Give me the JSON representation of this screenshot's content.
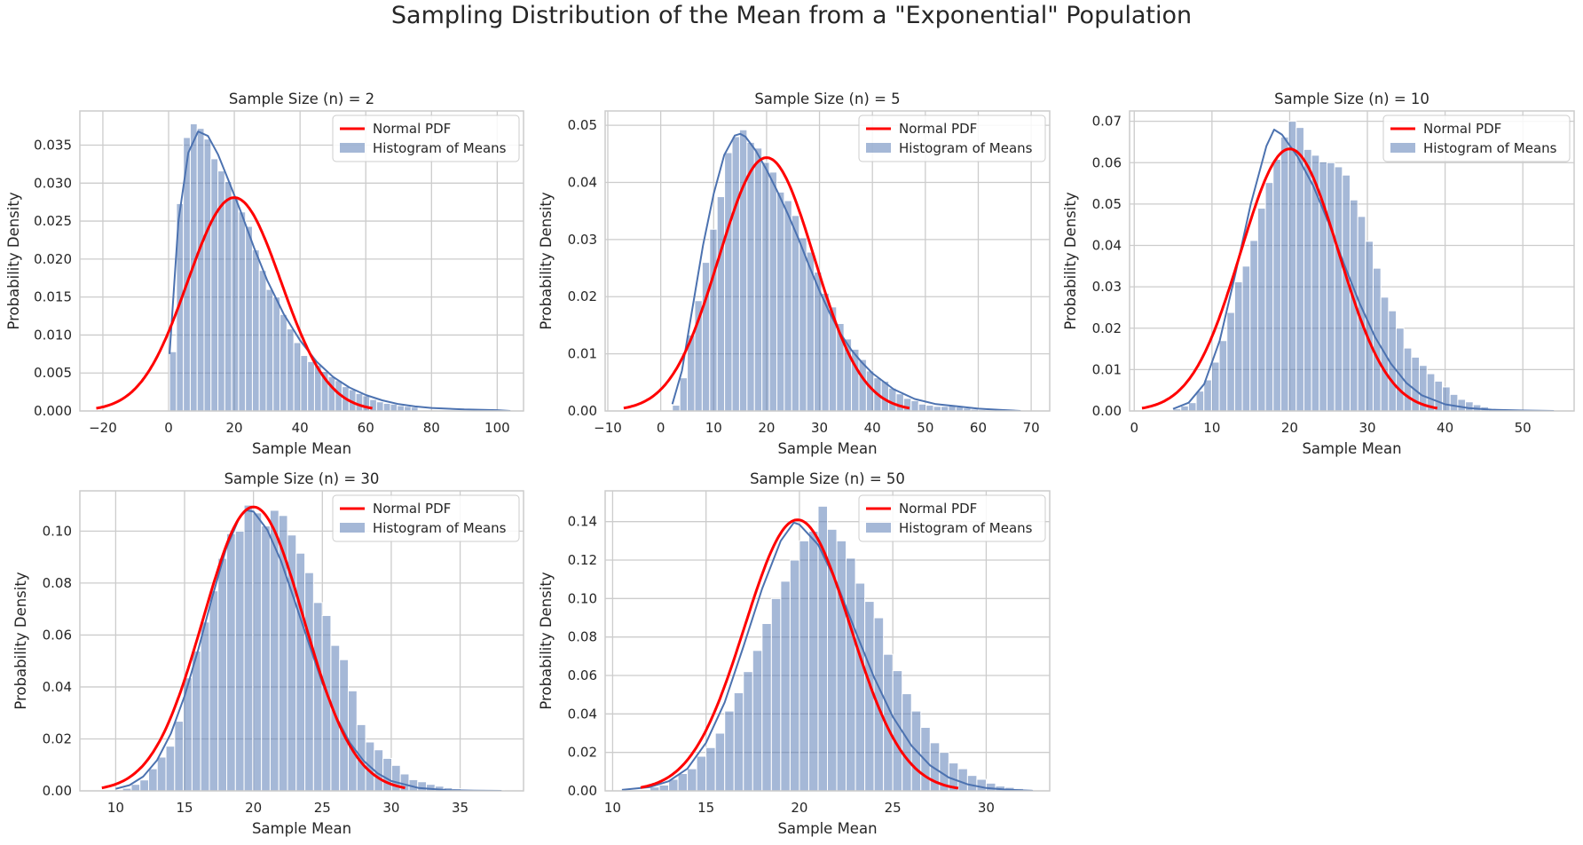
{
  "figure": {
    "title": "Sampling Distribution of the Mean from a \"Exponential\" Population"
  },
  "colors": {
    "normal_pdf": "#ff0000",
    "histogram": "#4c72b0",
    "grid": "#cccccc",
    "axes_bg": "#ffffff"
  },
  "chart_data": [
    {
      "type": "bar",
      "title": "Sample Size (n) = 2",
      "xlabel": "Sample Mean",
      "ylabel": "Probability Density",
      "legend": {
        "placement": "top-right",
        "entries": [
          "Normal PDF",
          "Histogram of Means"
        ]
      },
      "grid": true,
      "xlim": [
        -27,
        108
      ],
      "ylim": [
        0,
        0.0395
      ],
      "xticks": [
        -20,
        0,
        20,
        40,
        60,
        80,
        100
      ],
      "yticks": [
        0.0,
        0.005,
        0.01,
        0.015,
        0.02,
        0.025,
        0.03,
        0.035
      ],
      "ytick_decimals": 3,
      "hist": {
        "start": 0.3,
        "width": 2.1,
        "values": [
          0.0078,
          0.0273,
          0.036,
          0.0378,
          0.0372,
          0.0358,
          0.0332,
          0.0316,
          0.0302,
          0.0282,
          0.0262,
          0.0243,
          0.0212,
          0.0185,
          0.016,
          0.015,
          0.0127,
          0.0108,
          0.009,
          0.0073,
          0.0065,
          0.006,
          0.0052,
          0.0045,
          0.004,
          0.0032,
          0.0028,
          0.0023,
          0.002,
          0.0015,
          0.0012,
          0.001,
          0.0009,
          0.0007,
          0.0006,
          0.0005
        ]
      },
      "kde": {
        "x": [
          0.3,
          3,
          6,
          9,
          12,
          15,
          18,
          22,
          26,
          30,
          35,
          40,
          45,
          50,
          55,
          60,
          65,
          70,
          75,
          80,
          90,
          100,
          104
        ],
        "y": [
          0.0075,
          0.025,
          0.034,
          0.0368,
          0.0362,
          0.0338,
          0.0306,
          0.0262,
          0.0215,
          0.0172,
          0.0128,
          0.0093,
          0.0065,
          0.0045,
          0.0031,
          0.0021,
          0.0014,
          0.0009,
          0.0006,
          0.0004,
          0.0002,
          0.0001,
          0.0
        ]
      },
      "normal": {
        "mean": 20,
        "sd": 14.2,
        "x_range": [
          -22,
          62
        ]
      }
    },
    {
      "type": "bar",
      "title": "Sample Size (n) = 5",
      "xlabel": "Sample Mean",
      "ylabel": "Probability Density",
      "legend": {
        "placement": "top-right",
        "entries": [
          "Normal PDF",
          "Histogram of Means"
        ]
      },
      "grid": true,
      "xlim": [
        -10.5,
        73.5
      ],
      "ylim": [
        0,
        0.0525
      ],
      "xticks": [
        -10,
        0,
        10,
        20,
        30,
        40,
        50,
        60,
        70
      ],
      "yticks": [
        0.0,
        0.01,
        0.02,
        0.03,
        0.04,
        0.05
      ],
      "ytick_decimals": 2,
      "hist": {
        "start": 2.2,
        "width": 1.41,
        "values": [
          0.001,
          0.0058,
          0.0133,
          0.0193,
          0.026,
          0.0318,
          0.0375,
          0.0452,
          0.048,
          0.0492,
          0.047,
          0.046,
          0.0435,
          0.0418,
          0.0383,
          0.0368,
          0.0342,
          0.0303,
          0.0278,
          0.0243,
          0.0206,
          0.0182,
          0.0153,
          0.0126,
          0.0108,
          0.009,
          0.007,
          0.0058,
          0.0052,
          0.004,
          0.003,
          0.0022,
          0.0018,
          0.0012,
          0.001,
          0.0008,
          0.0008,
          0.0009,
          0.0007,
          0.0005,
          0.0003,
          0.0002
        ]
      },
      "kde": {
        "x": [
          2.2,
          4,
          6,
          8,
          10,
          12,
          14,
          15,
          16,
          18,
          20,
          22,
          24,
          26,
          28,
          30,
          32,
          34,
          36,
          38,
          40,
          44,
          48,
          52,
          56,
          60,
          64,
          68
        ],
        "y": [
          0.0012,
          0.007,
          0.018,
          0.029,
          0.038,
          0.0448,
          0.0482,
          0.0485,
          0.048,
          0.0455,
          0.0422,
          0.0385,
          0.0345,
          0.0302,
          0.0255,
          0.021,
          0.017,
          0.0135,
          0.0107,
          0.0085,
          0.0066,
          0.0038,
          0.0021,
          0.0012,
          0.0008,
          0.0004,
          0.0002,
          0.0
        ]
      },
      "normal": {
        "mean": 20,
        "sd": 9.0,
        "x_range": [
          -7,
          47
        ]
      }
    },
    {
      "type": "bar",
      "title": "Sample Size (n) = 10",
      "xlabel": "Sample Mean",
      "ylabel": "Probability Density",
      "legend": {
        "placement": "top-right",
        "entries": [
          "Normal PDF",
          "Histogram of Means"
        ]
      },
      "grid": true,
      "xlim": [
        -0.6,
        56.6
      ],
      "ylim": [
        0,
        0.0725
      ],
      "xticks": [
        0,
        10,
        20,
        30,
        40,
        50
      ],
      "yticks": [
        0.0,
        0.01,
        0.02,
        0.03,
        0.04,
        0.05,
        0.06,
        0.07
      ],
      "ytick_decimals": 2,
      "hist": {
        "start": 5.0,
        "width": 0.99,
        "values": [
          0.0005,
          0.0012,
          0.002,
          0.0048,
          0.0075,
          0.0118,
          0.017,
          0.0238,
          0.0312,
          0.035,
          0.0412,
          0.049,
          0.0552,
          0.0608,
          0.0662,
          0.07,
          0.0685,
          0.0632,
          0.0618,
          0.0602,
          0.06,
          0.059,
          0.057,
          0.051,
          0.047,
          0.041,
          0.0345,
          0.0275,
          0.0242,
          0.02,
          0.0152,
          0.013,
          0.011,
          0.009,
          0.0072,
          0.0058,
          0.004,
          0.0028,
          0.0022,
          0.0015,
          0.001,
          0.0006,
          0.0005,
          0.0003,
          0.0002
        ]
      },
      "kde": {
        "x": [
          5,
          7,
          9,
          11,
          13,
          15,
          17,
          18,
          19,
          21,
          23,
          25,
          27,
          29,
          31,
          33,
          35,
          37,
          40,
          43,
          46,
          50,
          54
        ],
        "y": [
          0.0005,
          0.002,
          0.0065,
          0.017,
          0.033,
          0.05,
          0.064,
          0.068,
          0.0668,
          0.0615,
          0.0545,
          0.0455,
          0.0355,
          0.026,
          0.0178,
          0.0115,
          0.0068,
          0.0038,
          0.0016,
          0.0007,
          0.0003,
          0.0001,
          0.0
        ]
      },
      "normal": {
        "mean": 20,
        "sd": 6.3,
        "x_range": [
          1,
          39
        ]
      }
    },
    {
      "type": "bar",
      "title": "Sample Size (n) = 30",
      "xlabel": "Sample Mean",
      "ylabel": "Probability Density",
      "legend": {
        "placement": "top-right",
        "entries": [
          "Normal PDF",
          "Histogram of Means"
        ]
      },
      "grid": true,
      "xlim": [
        7.4,
        39.6
      ],
      "ylim": [
        0,
        0.1155
      ],
      "xticks": [
        10,
        15,
        20,
        25,
        30,
        35
      ],
      "yticks": [
        0.0,
        0.02,
        0.04,
        0.06,
        0.08,
        0.1
      ],
      "ytick_decimals": 2,
      "hist": {
        "start": 10.5,
        "width": 0.63,
        "values": [
          0.001,
          0.0025,
          0.0042,
          0.0085,
          0.013,
          0.0172,
          0.0268,
          0.0435,
          0.0538,
          0.065,
          0.077,
          0.0895,
          0.099,
          0.1,
          0.11,
          0.107,
          0.102,
          0.108,
          0.106,
          0.0985,
          0.0915,
          0.084,
          0.0725,
          0.0675,
          0.056,
          0.0505,
          0.0385,
          0.0255,
          0.0188,
          0.0158,
          0.0125,
          0.0098,
          0.0065,
          0.0043,
          0.0035,
          0.0025,
          0.0018,
          0.0012,
          0.0008,
          0.0005,
          0.0003,
          0.0002,
          0.0001,
          0.0001
        ]
      },
      "kde": {
        "x": [
          10,
          11,
          12,
          13,
          14,
          15,
          16,
          17,
          18,
          19,
          19.5,
          20,
          21,
          22,
          23,
          24,
          25,
          26,
          27,
          28,
          29,
          30,
          32,
          34,
          36,
          38
        ],
        "y": [
          0.0008,
          0.0022,
          0.0055,
          0.0118,
          0.022,
          0.0365,
          0.0545,
          0.0745,
          0.093,
          0.1055,
          0.108,
          0.1075,
          0.1005,
          0.0885,
          0.073,
          0.057,
          0.0415,
          0.0285,
          0.0185,
          0.0115,
          0.0068,
          0.0038,
          0.0011,
          0.0003,
          0.0001,
          0.0
        ]
      },
      "normal": {
        "mean": 20,
        "sd": 3.65,
        "x_range": [
          9,
          31
        ]
      }
    },
    {
      "type": "bar",
      "title": "Sample Size (n) = 50",
      "xlabel": "Sample Mean",
      "ylabel": "Probability Density",
      "legend": {
        "placement": "top-right",
        "entries": [
          "Normal PDF",
          "Histogram of Means"
        ]
      },
      "grid": true,
      "xlim": [
        9.6,
        33.4
      ],
      "ylim": [
        0,
        0.156
      ],
      "xticks": [
        10,
        15,
        20,
        25,
        30
      ],
      "yticks": [
        0.0,
        0.02,
        0.04,
        0.06,
        0.08,
        0.1,
        0.12,
        0.14
      ],
      "ytick_decimals": 2,
      "hist": {
        "start": 12.0,
        "width": 0.5,
        "values": [
          0.002,
          0.003,
          0.006,
          0.009,
          0.0115,
          0.018,
          0.0225,
          0.03,
          0.0415,
          0.051,
          0.062,
          0.073,
          0.087,
          0.1,
          0.109,
          0.12,
          0.13,
          0.135,
          0.148,
          0.136,
          0.13,
          0.121,
          0.108,
          0.0985,
          0.09,
          0.071,
          0.0625,
          0.0505,
          0.0415,
          0.033,
          0.025,
          0.02,
          0.0145,
          0.0115,
          0.008,
          0.006,
          0.004,
          0.0025,
          0.0018,
          0.0012,
          0.0008
        ]
      },
      "kde": {
        "x": [
          10.5,
          12,
          13,
          14,
          15,
          16,
          17,
          18,
          19,
          19.7,
          20,
          21,
          22,
          23,
          24,
          25,
          26,
          27,
          28,
          29,
          30,
          31,
          32.5
        ],
        "y": [
          0.0005,
          0.002,
          0.005,
          0.0115,
          0.025,
          0.046,
          0.075,
          0.105,
          0.13,
          0.1395,
          0.1385,
          0.128,
          0.108,
          0.083,
          0.059,
          0.0385,
          0.0235,
          0.0132,
          0.0069,
          0.0034,
          0.0015,
          0.0007,
          0.0
        ]
      },
      "normal": {
        "mean": 19.9,
        "sd": 2.83,
        "x_range": [
          11.5,
          28.5
        ]
      }
    }
  ]
}
